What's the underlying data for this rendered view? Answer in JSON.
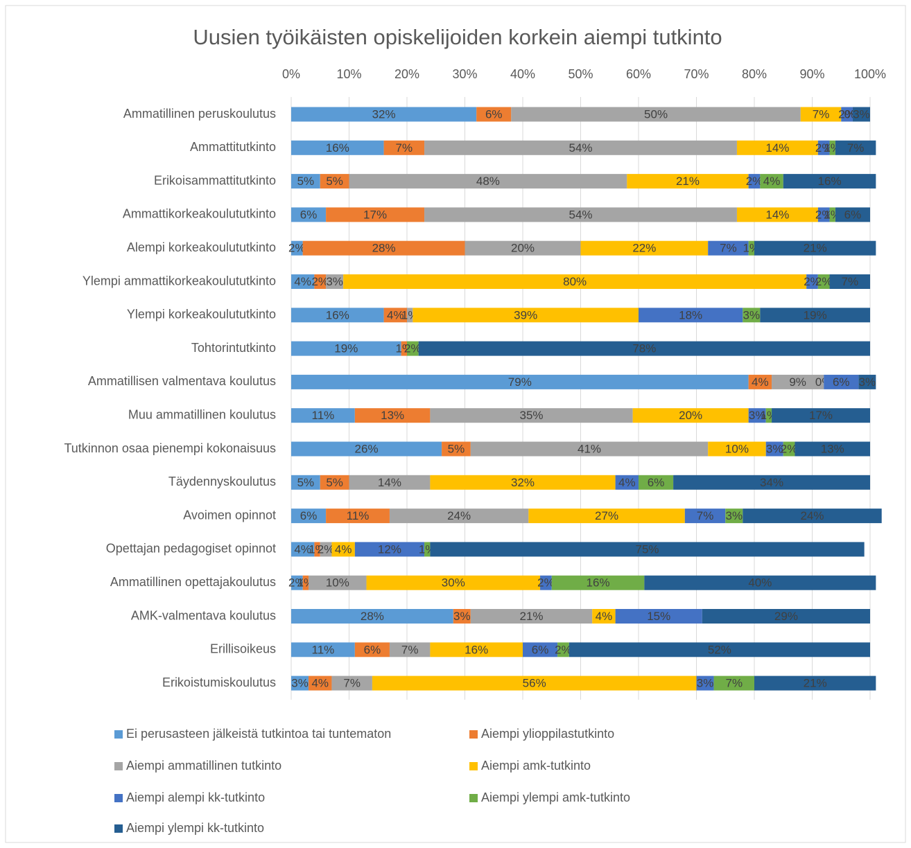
{
  "chart_data": {
    "type": "stacked-bar-horizontal",
    "title": "Uusien työikäisten opiskelijoiden korkein aiempi tutkinto",
    "categories": [
      "Ammatillinen peruskoulutus",
      "Ammattitutkinto",
      "Erikoisammattitutkinto",
      "Ammattikorkeakoulututkinto",
      "Alempi korkeakoulututkinto",
      "Ylempi ammattikorkeakoulututkinto",
      "Ylempi korkeakoulututkinto",
      "Tohtorintutkinto",
      "Ammatillisen valmentava koulutus",
      "Muu ammatillinen koulutus",
      "Tutkinnon osaa pienempi kokonaisuus",
      "Täydennyskoulutus",
      "Avoimen opinnot",
      "Opettajan pedagogiset opinnot",
      "Ammatillinen opettajakoulutus",
      "AMK-valmentava koulutus",
      "Erillisoikeus",
      "Erikoistumiskoulutus"
    ],
    "series": [
      {
        "name": "Ei perusasteen jälkeistä tutkintoa tai tuntematon",
        "color": "#5b9bd5",
        "values": [
          32,
          16,
          5,
          6,
          2,
          4,
          16,
          19,
          79,
          11,
          26,
          5,
          6,
          4,
          2,
          28,
          11,
          3
        ],
        "value_labels": [
          "32%",
          "16%",
          "5%",
          "6%",
          "2%",
          "4%",
          "16%",
          "19%",
          "79%",
          "11%",
          "26%",
          "5%",
          "6%",
          "4%",
          "2%",
          "28%",
          "11%",
          "3%"
        ]
      },
      {
        "name": "Aiempi ylioppilastutkinto",
        "color": "#ed7d31",
        "values": [
          6,
          7,
          5,
          17,
          28,
          2,
          4,
          1,
          4,
          13,
          5,
          5,
          11,
          1,
          1,
          3,
          6,
          4
        ],
        "value_labels": [
          "6%",
          "7%",
          "5%",
          "17%",
          "28%",
          "2%",
          "4%",
          "1%",
          "4%",
          "13%",
          "5%",
          "5%",
          "11%",
          "1%",
          "1%",
          "3%",
          "6%",
          "4%"
        ]
      },
      {
        "name": "Aiempi ammatillinen tutkinto",
        "color": "#a5a5a5",
        "values": [
          50,
          54,
          48,
          54,
          20,
          3,
          1,
          null,
          9,
          35,
          41,
          14,
          24,
          2,
          10,
          21,
          7,
          7
        ],
        "value_labels": [
          "50%",
          "54%",
          "48%",
          "54%",
          "20%",
          "3%",
          "1%",
          null,
          "9%",
          "35%",
          "41%",
          "14%",
          "24%",
          "2%",
          "10%",
          "21%",
          "7%",
          "7%"
        ]
      },
      {
        "name": "Aiempi amk-tutkinto",
        "color": "#ffc000",
        "values": [
          7,
          14,
          21,
          14,
          22,
          80,
          39,
          null,
          0,
          20,
          10,
          32,
          27,
          4,
          30,
          4,
          16,
          56
        ],
        "value_labels": [
          "7%",
          "14%",
          "21%",
          "14%",
          "22%",
          "80%",
          "39%",
          null,
          "0%",
          "20%",
          "10%",
          "32%",
          "27%",
          "4%",
          "30%",
          "4%",
          "16%",
          "56%"
        ]
      },
      {
        "name": "Aiempi alempi kk-tutkinto",
        "color": "#4472c4",
        "values": [
          2,
          2,
          2,
          2,
          7,
          2,
          18,
          null,
          6,
          3,
          3,
          4,
          7,
          12,
          2,
          15,
          6,
          3
        ],
        "value_labels": [
          "2%",
          "2%",
          "2%",
          "2%",
          "7%",
          "2%",
          "18%",
          null,
          "6%",
          "3%",
          "3%",
          "4%",
          "7%",
          "12%",
          "2%",
          "15%",
          "6%",
          "3%"
        ]
      },
      {
        "name": "Aiempi ylempi amk-tutkinto",
        "color": "#70ad47",
        "values": [
          0,
          1,
          4,
          1,
          1,
          2,
          3,
          2,
          null,
          1,
          2,
          6,
          3,
          1,
          16,
          null,
          2,
          7
        ],
        "value_labels": [
          "0%",
          "1%",
          "4%",
          "1%",
          "1%",
          "2%",
          "3%",
          "2%",
          null,
          "1%",
          "2%",
          "6%",
          "3%",
          "1%",
          "16%",
          null,
          "2%",
          "7%"
        ]
      },
      {
        "name": "Aiempi ylempi kk-tutkinto",
        "color": "#255e91",
        "values": [
          3,
          7,
          16,
          6,
          21,
          7,
          19,
          78,
          3,
          17,
          13,
          34,
          24,
          75,
          40,
          29,
          52,
          21
        ],
        "value_labels": [
          "3%",
          "7%",
          "16%",
          "6%",
          "21%",
          "7%",
          "19%",
          "78%",
          "3%",
          "17%",
          "13%",
          "34%",
          "24%",
          "75%",
          "40%",
          "29%",
          "52%",
          "21%"
        ]
      }
    ],
    "xlim": [
      0,
      100
    ],
    "xticks": [
      {
        "value": 0,
        "label": "0%"
      },
      {
        "value": 10,
        "label": "10%"
      },
      {
        "value": 20,
        "label": "20%"
      },
      {
        "value": 30,
        "label": "30%"
      },
      {
        "value": 40,
        "label": "40%"
      },
      {
        "value": 50,
        "label": "50%"
      },
      {
        "value": 60,
        "label": "60%"
      },
      {
        "value": 70,
        "label": "70%"
      },
      {
        "value": 80,
        "label": "80%"
      },
      {
        "value": 90,
        "label": "90%"
      },
      {
        "value": 100,
        "label": "100%"
      }
    ],
    "grid": true
  }
}
